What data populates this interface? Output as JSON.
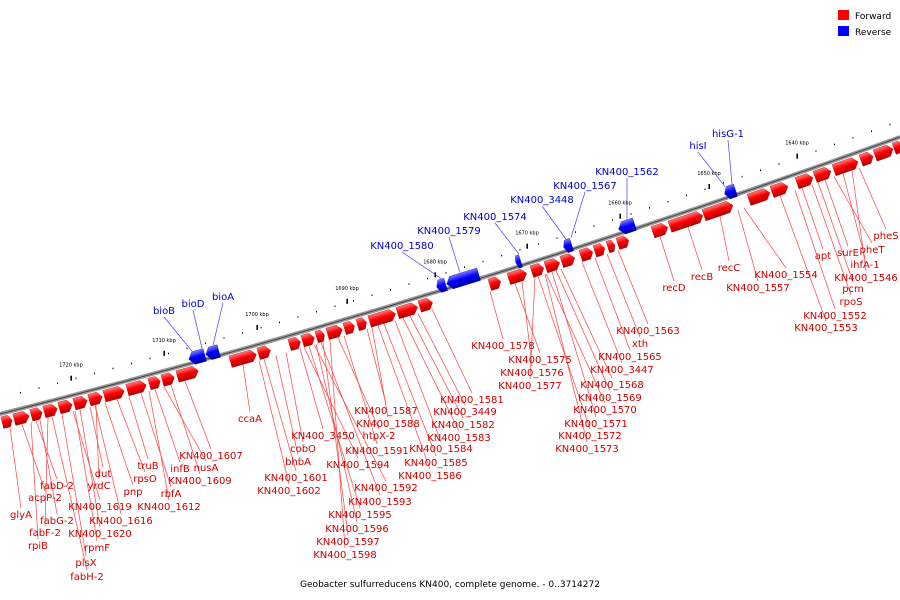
{
  "legend": [
    {
      "label": "Forward",
      "color": "#ff0000"
    },
    {
      "label": "Reverse",
      "color": "#0000ff"
    }
  ],
  "caption": "Geobacter sulfurreducens KN400, complete genome. - 0..3714272",
  "ticks": [
    "1640 kbp",
    "1650 kbp",
    "1660 kbp",
    "1670 kbp",
    "1680 kbp",
    "1690 kbp",
    "1700 kbp",
    "1710 kbp",
    "1720 kbp"
  ],
  "forward_labels": [
    "glyA",
    "acpP-2",
    "fabD-2",
    "fabG-2",
    "fabF-2",
    "rpiB",
    "plsX",
    "fabH-2",
    "rpmF",
    "KN400_1620",
    "KN400_1619",
    "KN400_1616",
    "dut",
    "yrdC",
    "pnp",
    "rpsO",
    "truB",
    "rbfA",
    "KN400_1612",
    "infB",
    "nusA",
    "KN400_1609",
    "KN400_1607",
    "ccaA",
    "KN400_1601",
    "KN400_1602",
    "bhbA",
    "cobO",
    "KN400_3450",
    "KN400_1594",
    "htpX-2",
    "KN400_1591",
    "KN400_1592",
    "KN400_1593",
    "KN400_1595",
    "KN400_1596",
    "KN400_1597",
    "KN400_1598",
    "KN400_1587",
    "KN400_1588",
    "KN400_1584",
    "KN400_1585",
    "KN400_1586",
    "KN400_1583",
    "KN400_1582",
    "KN400_3449",
    "KN400_1581",
    "KN400_1578",
    "KN400_1575",
    "KN400_1576",
    "KN400_1577",
    "KN400_1568",
    "KN400_1569",
    "KN400_1570",
    "KN400_1571",
    "KN400_1572",
    "KN400_1573",
    "KN400_3447",
    "KN400_1565",
    "xth",
    "KN400_1563",
    "recD",
    "recB",
    "recC",
    "KN400_1554",
    "KN400_1557",
    "apt",
    "surE",
    "pheT",
    "pheS",
    "ihfA-1",
    "KN400_1546",
    "pcm",
    "rpoS",
    "KN400_1552",
    "KN400_1553"
  ],
  "reverse_labels": [
    "bioB",
    "bioD",
    "bioA",
    "KN400_1580",
    "KN400_1579",
    "KN400_1574",
    "KN400_3448",
    "KN400_1567",
    "KN400_1562",
    "hisI",
    "hisG-1"
  ]
}
